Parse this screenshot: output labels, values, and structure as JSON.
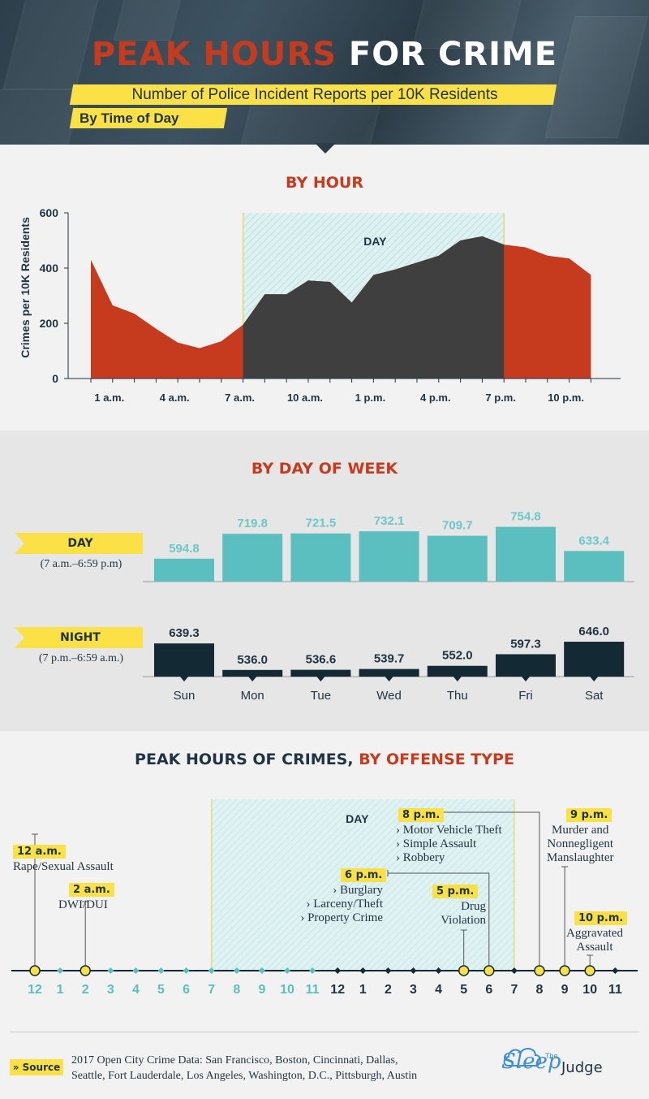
{
  "header": {
    "title_part1": "PEAK HOURS",
    "title_part2": "FOR CRIME",
    "subtitle": "Number of Police Incident Reports per 10K Residents",
    "subtitle2": "By Time of Day"
  },
  "by_hour": {
    "title": "BY HOUR",
    "day_label": "DAY"
  },
  "by_day": {
    "title": "BY DAY OF WEEK",
    "day_label": "DAY",
    "day_range": "(7 a.m.–6:59 p.m)",
    "night_label": "NIGHT",
    "night_range": "(7 p.m.–6:59 a.m.)"
  },
  "offense": {
    "title_part1": "PEAK HOURS OF CRIMES,",
    "title_part2": "BY OFFENSE TYPE",
    "day_label": "DAY",
    "hours": [
      "12",
      "1",
      "2",
      "3",
      "4",
      "5",
      "6",
      "7",
      "8",
      "9",
      "10",
      "11",
      "12",
      "1",
      "2",
      "3",
      "4",
      "5",
      "6",
      "7",
      "8",
      "9",
      "10",
      "11"
    ],
    "peaks": [
      {
        "time": "12 a.m.",
        "lines": [
          "Rape/Sexual Assault"
        ],
        "hour": 0
      },
      {
        "time": "2 a.m.",
        "lines": [
          "DWI/DUI"
        ],
        "hour": 2
      },
      {
        "time": "6 p.m.",
        "lines": [
          "› Burglary",
          "› Larceny/Theft",
          "› Property Crime"
        ],
        "hour": 18
      },
      {
        "time": "5 p.m.",
        "lines": [
          "Drug",
          "Violation"
        ],
        "hour": 17
      },
      {
        "time": "8 p.m.",
        "lines": [
          "› Motor Vehicle Theft",
          "› Simple Assault",
          "› Robbery"
        ],
        "hour": 20
      },
      {
        "time": "9 p.m.",
        "lines": [
          "Murder and",
          "Nonnegligent",
          "Manslaughter"
        ],
        "hour": 21
      },
      {
        "time": "10 p.m.",
        "lines": [
          "Aggravated",
          "Assault"
        ],
        "hour": 22
      }
    ]
  },
  "footer": {
    "source_label": "» Source",
    "source_line1": "2017 Open City Crime Data: San Francisco, Boston, Cincinnati, Dallas,",
    "source_line2": "Seattle, Fort Lauderdale, Los Angeles, Washington, D.C., Pittsburgh, Austin",
    "logo_the": "The",
    "logo_sleep": "Sleep",
    "logo_judge": "Judge"
  },
  "colors": {
    "red": "#c63a1e",
    "navy": "#1f3342",
    "teal": "#5bbfbf",
    "yellow": "#fbe046"
  },
  "chart_data": [
    {
      "type": "area",
      "title": "BY HOUR",
      "ylabel": "Crimes per 10K Residents",
      "xlabel": "",
      "ylim": [
        0,
        600
      ],
      "yticks": [
        0,
        200,
        400,
        600
      ],
      "x": [
        0,
        1,
        2,
        3,
        4,
        5,
        6,
        7,
        8,
        9,
        10,
        11,
        12,
        13,
        14,
        15,
        16,
        17,
        18,
        19,
        20,
        21,
        22,
        23
      ],
      "values": [
        430,
        265,
        235,
        180,
        130,
        110,
        135,
        195,
        305,
        305,
        355,
        350,
        275,
        375,
        395,
        420,
        445,
        500,
        515,
        485,
        475,
        445,
        435,
        375
      ],
      "xtick_labels": [
        "1 a.m.",
        "4 a.m.",
        "7 a.m.",
        "10 a.m.",
        "1 p.m.",
        "4 p.m.",
        "7 p.m.",
        "10 p.m."
      ],
      "xtick_hours": [
        1,
        4,
        7,
        10,
        13,
        16,
        19,
        22
      ],
      "day_range_hours": [
        7,
        19
      ]
    },
    {
      "type": "bar",
      "title": "BY DAY OF WEEK",
      "categories": [
        "Sun",
        "Mon",
        "Tue",
        "Wed",
        "Thu",
        "Fri",
        "Sat"
      ],
      "series": [
        {
          "name": "DAY",
          "values": [
            594.8,
            719.8,
            721.5,
            732.1,
            709.7,
            754.8,
            633.4
          ],
          "labels": [
            "594.8",
            "719.8",
            "721.5",
            "732.1",
            "709.7",
            "754.8",
            "633.4"
          ]
        },
        {
          "name": "NIGHT",
          "values": [
            639.3,
            536.0,
            536.6,
            539.7,
            552.0,
            597.3,
            646.0
          ],
          "labels": [
            "639.3",
            "536.0",
            "536.6",
            "539.7",
            "552.0",
            "597.3",
            "646.0"
          ]
        }
      ]
    }
  ]
}
